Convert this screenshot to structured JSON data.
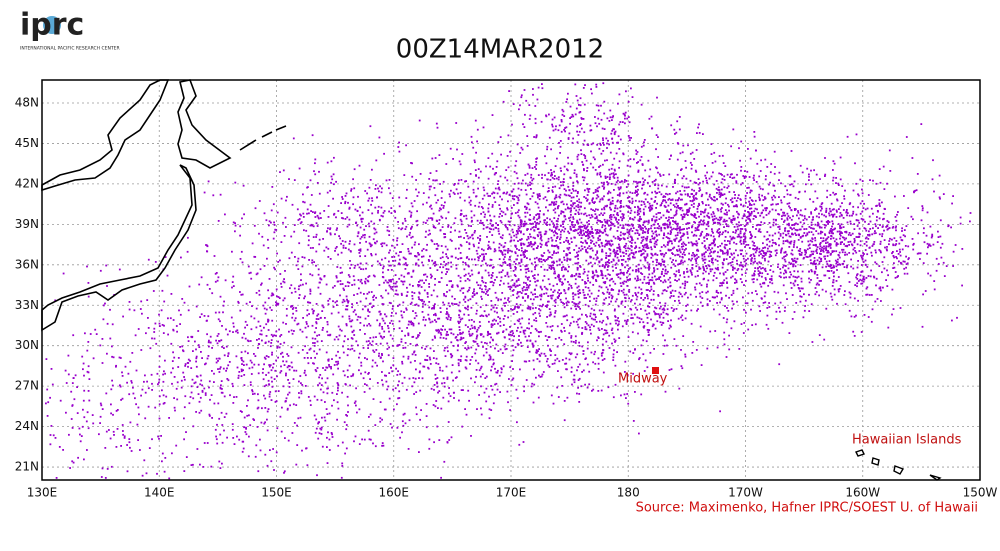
{
  "header": {
    "logo": "iprc",
    "logo_subtitle": "INTERNATIONAL PACIFIC RESEARCH CENTER",
    "title": "00Z14MAR2012"
  },
  "map": {
    "lat_labels": [
      "48N",
      "45N",
      "42N",
      "39N",
      "36N",
      "33N",
      "30N",
      "27N",
      "24N",
      "21N"
    ],
    "lon_labels": [
      "130E",
      "140E",
      "150E",
      "160E",
      "170E",
      "180",
      "170W",
      "160W",
      "150W"
    ],
    "places": [
      "Midway",
      "Hawaiian Islands"
    ]
  },
  "source": "Source: Maximenko, Hafner IPRC/SOEST U. of Hawaii"
}
